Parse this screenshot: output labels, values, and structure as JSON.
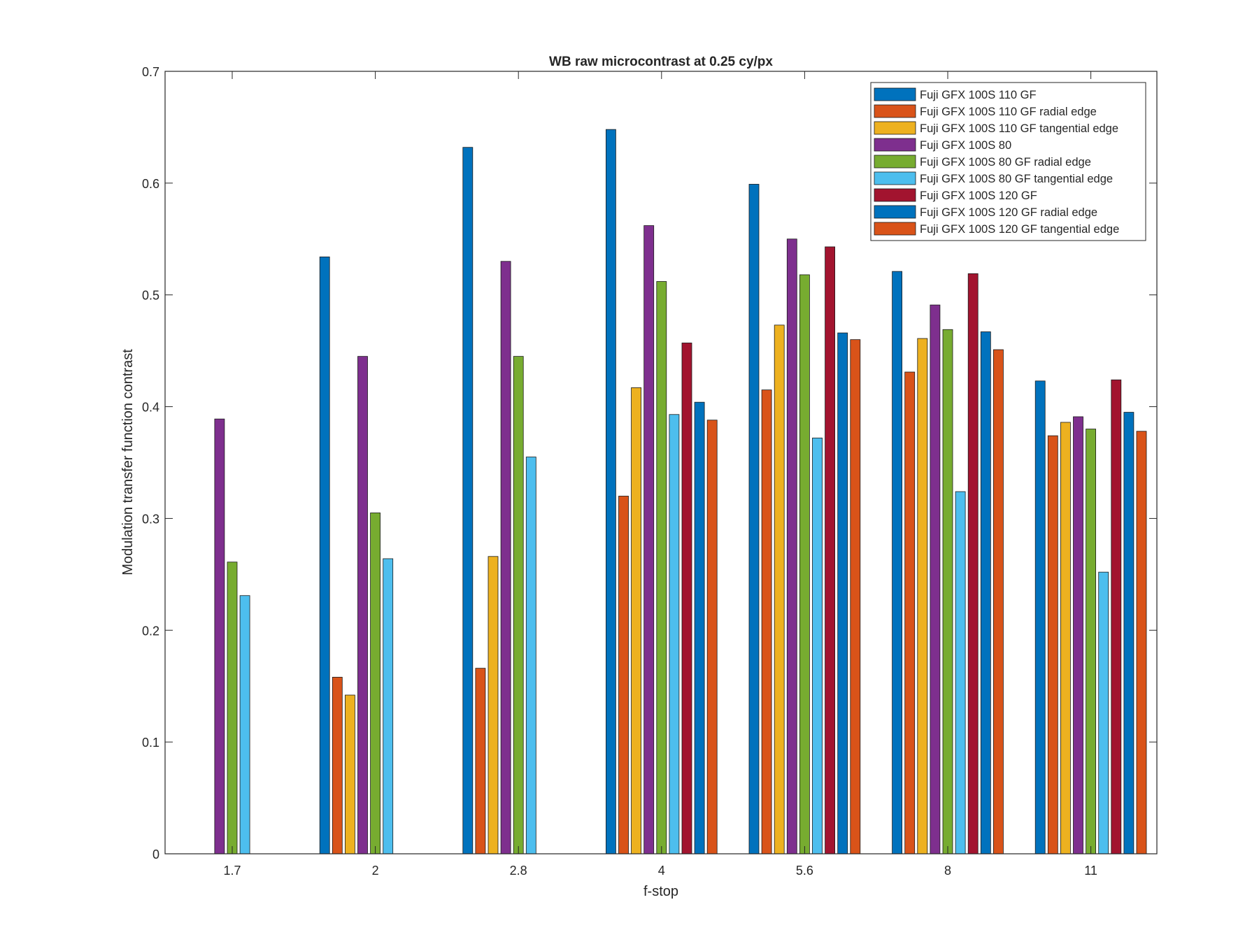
{
  "chart_data": {
    "type": "bar",
    "title": "WB raw  microcontrast at 0.25 cy/px",
    "xlabel": "f-stop",
    "ylabel": "Modulation transfer function contrast",
    "categories": [
      "1.7",
      "2",
      "2.8",
      "4",
      "5.6",
      "8",
      "11"
    ],
    "ylim": [
      0,
      0.7
    ],
    "yticks": [
      "0",
      "0.1",
      "0.2",
      "0.3",
      "0.4",
      "0.5",
      "0.6",
      "0.7"
    ],
    "grid": false,
    "legend_position": "top-right",
    "series": [
      {
        "name": "Fuji GFX 100S 110 GF",
        "color": "#0072BD",
        "values": [
          null,
          0.534,
          0.632,
          0.648,
          0.599,
          0.521,
          0.423
        ]
      },
      {
        "name": "Fuji GFX 100S 110 GF radial edge",
        "color": "#D95319",
        "values": [
          null,
          0.158,
          0.166,
          0.32,
          0.415,
          0.431,
          0.374
        ]
      },
      {
        "name": "Fuji GFX 100S 110 GF tangential edge",
        "color": "#EDB120",
        "values": [
          null,
          0.142,
          0.266,
          0.417,
          0.473,
          0.461,
          0.386
        ]
      },
      {
        "name": "Fuji GFX 100S 80",
        "color": "#7E2F8E",
        "values": [
          0.389,
          0.445,
          0.53,
          0.562,
          0.55,
          0.491,
          0.391
        ]
      },
      {
        "name": "Fuji GFX 100S 80 GF radial edge",
        "color": "#77AC30",
        "values": [
          0.261,
          0.305,
          0.445,
          0.512,
          0.518,
          0.469,
          0.38
        ]
      },
      {
        "name": "Fuji GFX 100S 80 GF tangential edge",
        "color": "#4DBEEE",
        "values": [
          0.231,
          0.264,
          0.355,
          0.393,
          0.372,
          0.324,
          0.252
        ]
      },
      {
        "name": "Fuji GFX 100S 120 GF",
        "color": "#A2142F",
        "values": [
          null,
          null,
          null,
          0.457,
          0.543,
          0.519,
          0.424
        ]
      },
      {
        "name": "Fuji GFX 100S 120 GF radial edge",
        "color": "#0072BD",
        "values": [
          null,
          null,
          null,
          0.404,
          0.466,
          0.467,
          0.395
        ]
      },
      {
        "name": "Fuji GFX 100S 120 GF tangential edge",
        "color": "#D95319",
        "values": [
          null,
          null,
          null,
          0.388,
          0.46,
          0.451,
          0.378
        ]
      }
    ]
  }
}
